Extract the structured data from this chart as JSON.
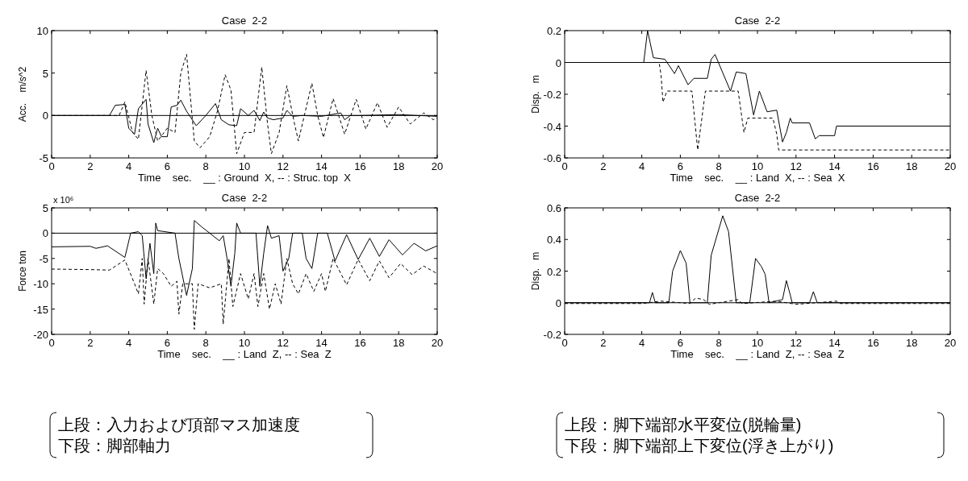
{
  "chart_data": [
    {
      "type": "line",
      "title": "Case  2-2",
      "xlabel": "Time    sec.    __ : Ground  X, -- : Struc. top  X",
      "ylabel": "Acc.    m/s^2",
      "xlim": [
        0,
        20
      ],
      "ylim": [
        -5,
        10
      ],
      "xticks": [
        0,
        2,
        4,
        6,
        8,
        10,
        12,
        14,
        16,
        18,
        20
      ],
      "yticks": [
        -5,
        0,
        5,
        10
      ],
      "ref_lines": [
        {
          "axis": "y",
          "value": 0
        }
      ],
      "series": [
        {
          "color": "#000000",
          "line_style": "solid",
          "x": [
            0,
            1,
            2,
            3,
            3.3,
            3.8,
            4.0,
            4.3,
            4.5,
            4.9,
            5.0,
            5.3,
            5.5,
            5.7,
            6.0,
            6.2,
            6.5,
            6.7,
            7.0,
            7.5,
            8.0,
            8.5,
            8.8,
            9.2,
            9.6,
            9.8,
            10.2,
            10.5,
            10.8,
            11.0,
            11.2,
            11.5,
            12.0,
            12.2,
            12.5,
            13,
            14,
            15,
            15.2,
            15.5,
            16,
            18,
            20
          ],
          "values": [
            0,
            0,
            0,
            0,
            1.2,
            1.3,
            -1.5,
            -2.2,
            0.8,
            1.9,
            -1,
            -3.2,
            -1.5,
            -2.5,
            -2.5,
            1.0,
            1.2,
            1.8,
            0.5,
            -1.2,
            0,
            1.4,
            -0.5,
            -1.1,
            -1.2,
            0.8,
            0,
            0.6,
            -0.6,
            0.4,
            -0.3,
            -0.5,
            -0.3,
            0.6,
            -0.1,
            0,
            -0.1,
            0.3,
            -0.5,
            0,
            0,
            0.1,
            -0.1
          ]
        },
        {
          "color": "#000000",
          "line_style": "dashed",
          "x": [
            0,
            3.5,
            3.8,
            4.2,
            4.5,
            4.9,
            5.2,
            5.5,
            6.0,
            6.4,
            6.7,
            7.0,
            7.4,
            7.7,
            8.2,
            8.6,
            9.0,
            9.3,
            9.6,
            10.0,
            10.5,
            10.9,
            11.2,
            11.4,
            11.8,
            12.2,
            12.6,
            12.8,
            13.5,
            13.8,
            14.1,
            14.6,
            15.2,
            15.8,
            16.3,
            16.9,
            17.4,
            18.0,
            18.6,
            19.3,
            19.8,
            20
          ],
          "values": [
            0,
            0,
            1.6,
            -2,
            -2.8,
            5.3,
            0,
            -3,
            -1.5,
            -2,
            5,
            7.2,
            -3,
            -3.8,
            -2.5,
            0.5,
            4.8,
            3,
            -4.5,
            -2,
            -2,
            5.7,
            -1,
            -4.5,
            -2,
            3.5,
            -1,
            -3,
            3.8,
            0,
            -2.6,
            2.0,
            -2.2,
            1.9,
            -1.6,
            1.5,
            -1.4,
            1.0,
            -1.0,
            0.3,
            -0.5,
            -0.3
          ]
        }
      ]
    },
    {
      "type": "line",
      "title": "Case  2-2",
      "xlabel": "Time    sec.    __ : Land  X, -- : Sea  X",
      "ylabel": "Disp.   m",
      "xlim": [
        0,
        20
      ],
      "ylim": [
        -0.6,
        0.2
      ],
      "xticks": [
        0,
        2,
        4,
        6,
        8,
        10,
        12,
        14,
        16,
        18,
        20
      ],
      "yticks": [
        -0.6,
        -0.4,
        -0.2,
        0,
        0.2
      ],
      "ref_lines": [
        {
          "axis": "y",
          "value": 0
        }
      ],
      "series": [
        {
          "color": "#000000",
          "line_style": "solid",
          "x": [
            0,
            4.1,
            4.3,
            4.6,
            5.2,
            5.7,
            5.9,
            6.4,
            6.7,
            7.4,
            7.6,
            7.8,
            8.6,
            8.9,
            9.4,
            9.8,
            10.1,
            10.5,
            11.0,
            11.3,
            11.5,
            11.7,
            11.8,
            12.7,
            13.0,
            13.2,
            14.0,
            14.1,
            20
          ],
          "values": [
            0,
            0,
            0.2,
            0.03,
            0.02,
            -0.07,
            -0.02,
            -0.14,
            -0.1,
            -0.1,
            0.02,
            0.05,
            -0.18,
            -0.06,
            -0.07,
            -0.33,
            -0.18,
            -0.31,
            -0.3,
            -0.5,
            -0.44,
            -0.35,
            -0.38,
            -0.38,
            -0.48,
            -0.46,
            -0.46,
            -0.4,
            -0.4
          ]
        },
        {
          "color": "#000000",
          "line_style": "dashed",
          "x": [
            0,
            4.9,
            5.0,
            5.1,
            5.3,
            6.6,
            6.9,
            7.3,
            9.0,
            9.3,
            9.5,
            10.8,
            11.0,
            11.1,
            20
          ],
          "values": [
            0,
            0,
            -0.08,
            -0.25,
            -0.18,
            -0.18,
            -0.55,
            -0.18,
            -0.18,
            -0.44,
            -0.35,
            -0.35,
            -0.45,
            -0.55,
            -0.55
          ]
        }
      ]
    },
    {
      "type": "line",
      "title": "Case  2-2",
      "xlabel": "Time    sec.    __ : Land  Z, -- : Sea  Z",
      "ylabel": "Force ton",
      "annotations": [
        "x 10⁶"
      ],
      "xlim": [
        0,
        20
      ],
      "ylim": [
        -20,
        5
      ],
      "xticks": [
        0,
        2,
        4,
        6,
        8,
        10,
        12,
        14,
        16,
        18,
        20
      ],
      "yticks": [
        -20,
        -15,
        -10,
        -5,
        0,
        5
      ],
      "ref_lines": [
        {
          "axis": "y",
          "value": 0
        }
      ],
      "series": [
        {
          "color": "#000000",
          "line_style": "solid",
          "x": [
            0,
            2,
            2.3,
            2.9,
            3.8,
            4.1,
            4.5,
            4.7,
            4.9,
            5.1,
            5.3,
            5.4,
            5.5,
            6.4,
            6.6,
            7.0,
            7.3,
            7.4,
            7.8,
            8.7,
            8.9,
            9.1,
            9.3,
            9.5,
            9.6,
            9.8,
            10.6,
            10.8,
            11.0,
            11.2,
            11.4,
            11.8,
            12.0,
            12.3,
            12.5,
            13.0,
            13.2,
            13.5,
            13.8,
            14.3,
            14.7,
            15.3,
            15.9,
            16.5,
            17.0,
            17.5,
            18.2,
            18.8,
            19.4,
            20
          ],
          "values": [
            -2.7,
            -2.6,
            -3,
            -2.5,
            -4.8,
            0,
            0.3,
            -0.5,
            -9,
            -2,
            -8,
            2,
            0.5,
            0,
            -5,
            -12.3,
            -7,
            2.5,
            1.2,
            -1.5,
            -0.5,
            -5,
            -10.5,
            -4,
            2,
            0,
            0,
            -10.5,
            -4,
            1.5,
            -1,
            -0.5,
            -7.5,
            -5,
            0,
            0,
            -5,
            -7,
            0,
            0,
            -5.5,
            -0.3,
            -5.2,
            -1.0,
            -4.6,
            -1.3,
            -4.3,
            -2.0,
            -3.5,
            -2.5
          ]
        },
        {
          "color": "#000000",
          "line_style": "dashed",
          "x": [
            0,
            2,
            3,
            3.8,
            4.3,
            4.5,
            4.7,
            4.8,
            5.0,
            5.3,
            5.5,
            5.8,
            6.2,
            6.5,
            6.6,
            6.8,
            7.3,
            7.4,
            7.6,
            8.2,
            8.8,
            8.9,
            9.2,
            9.4,
            9.8,
            10.2,
            10.5,
            10.7,
            11.0,
            11.3,
            11.6,
            11.9,
            12.2,
            12.5,
            12.8,
            13.2,
            13.6,
            14.0,
            14.2,
            14.6,
            15.3,
            15.9,
            16.5,
            17.0,
            17.5,
            18.1,
            18.7,
            19.3,
            20
          ],
          "values": [
            -7.1,
            -7.2,
            -7.3,
            -5.3,
            -10,
            -12,
            -5,
            -14,
            -5,
            -14,
            -7,
            -8,
            -10.5,
            -9.5,
            -16,
            -10,
            -10,
            -19,
            -10,
            -10.8,
            -10,
            -18,
            -5,
            -14.5,
            -8,
            -13,
            -8,
            -14.5,
            -8,
            -15,
            -10,
            -14,
            -5,
            -10,
            -12,
            -8,
            -11.5,
            -8,
            -11.5,
            -5,
            -10.2,
            -5.2,
            -9.4,
            -5.5,
            -8.8,
            -6,
            -8.2,
            -6.5,
            -8
          ]
        }
      ]
    },
    {
      "type": "line",
      "title": "Case  2-2",
      "xlabel": "Time    sec.    __ : Land  Z, -- : Sea  Z",
      "ylabel": "Disp.   m",
      "xlim": [
        0,
        20
      ],
      "ylim": [
        -0.2,
        0.6
      ],
      "xticks": [
        0,
        2,
        4,
        6,
        8,
        10,
        12,
        14,
        16,
        18,
        20
      ],
      "yticks": [
        -0.2,
        0,
        0.2,
        0.4,
        0.6
      ],
      "ref_lines": [
        {
          "axis": "y",
          "value": 0
        }
      ],
      "series": [
        {
          "color": "#000000",
          "line_style": "solid",
          "x": [
            0,
            4.4,
            4.55,
            4.7,
            5.4,
            5.6,
            6.0,
            6.3,
            6.5,
            7.4,
            7.6,
            8.2,
            8.5,
            8.9,
            9.6,
            9.9,
            10.2,
            10.4,
            10.6,
            11.3,
            11.5,
            11.7,
            11.8,
            12.7,
            12.9,
            13.1,
            20
          ],
          "values": [
            0,
            0,
            0.065,
            0,
            0,
            0.2,
            0.33,
            0.25,
            0,
            0,
            0.3,
            0.55,
            0.45,
            0,
            0,
            0.28,
            0.23,
            0.18,
            0,
            0.02,
            0.14,
            0.05,
            0,
            0,
            0.07,
            0,
            0
          ]
        },
        {
          "color": "#000000",
          "line_style": "dashed",
          "x": [
            0,
            4,
            5.0,
            6.5,
            6.8,
            7.2,
            7.5,
            9.0,
            9.2,
            11,
            12,
            14.1,
            14.3,
            20
          ],
          "values": [
            -0.005,
            -0.005,
            0.01,
            -0.005,
            0.03,
            0.02,
            -0.01,
            0.02,
            -0.005,
            0.01,
            -0.01,
            0.01,
            -0.005,
            -0.005
          ]
        }
      ]
    },
    {
      "type": "other",
      "annotations": [
        "上段：入力および頂部マス加速度",
        "下段：脚部軸力"
      ]
    },
    {
      "type": "other",
      "annotations": [
        "上段：脚下端部水平変位(脱輪量)",
        "下段：脚下端部上下変位(浮き上がり)"
      ]
    }
  ]
}
